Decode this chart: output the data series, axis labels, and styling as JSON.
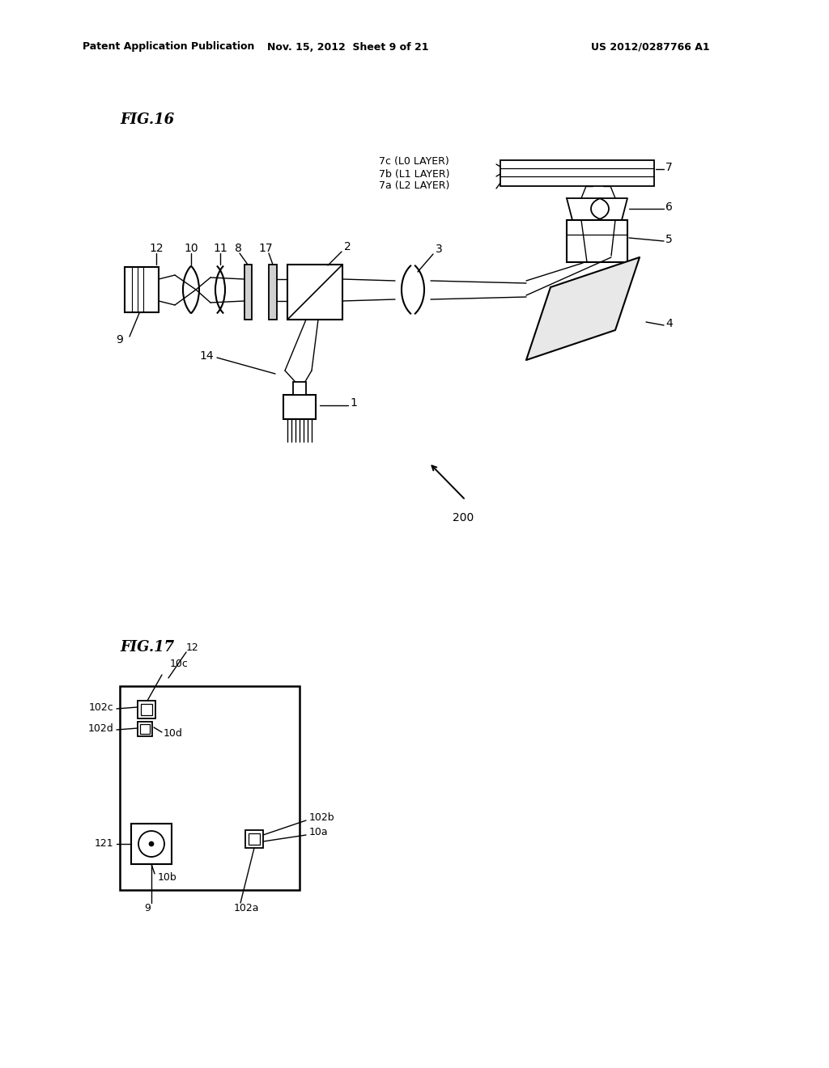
{
  "bg_color": "#ffffff",
  "header_left": "Patent Application Publication",
  "header_mid": "Nov. 15, 2012  Sheet 9 of 21",
  "header_right": "US 2012/0287766 A1",
  "fig16_title": "FIG.16",
  "fig17_title": "FIG.17",
  "label_200": "200"
}
